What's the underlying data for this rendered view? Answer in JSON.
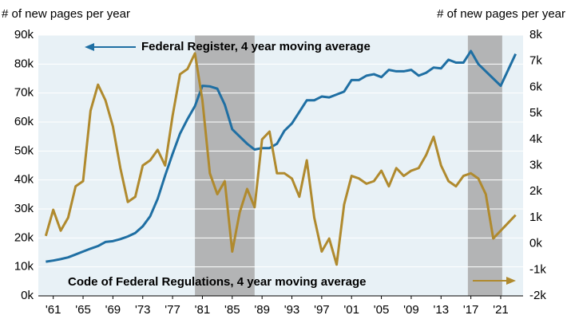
{
  "chart_data": {
    "type": "line",
    "y_label": "# of new pages per year",
    "y2_label": "# of new pages per year",
    "x": [
      1960,
      1961,
      1962,
      1963,
      1964,
      1965,
      1966,
      1967,
      1968,
      1969,
      1970,
      1971,
      1972,
      1973,
      1974,
      1975,
      1976,
      1977,
      1978,
      1979,
      1980,
      1981,
      1982,
      1983,
      1984,
      1985,
      1986,
      1987,
      1988,
      1989,
      1990,
      1991,
      1992,
      1993,
      1994,
      1995,
      1996,
      1997,
      1998,
      1999,
      2000,
      2001,
      2002,
      2003,
      2004,
      2005,
      2006,
      2007,
      2008,
      2009,
      2010,
      2011,
      2012,
      2013,
      2014,
      2015,
      2016,
      2017,
      2018,
      2019,
      2020,
      2021,
      2022,
      2023
    ],
    "xlim": [
      1959,
      2024
    ],
    "xticks": [
      {
        "value": 1961,
        "label": "'61"
      },
      {
        "value": 1965,
        "label": "'65"
      },
      {
        "value": 1969,
        "label": "'69"
      },
      {
        "value": 1973,
        "label": "'73"
      },
      {
        "value": 1977,
        "label": "'77"
      },
      {
        "value": 1981,
        "label": "'81"
      },
      {
        "value": 1985,
        "label": "'85"
      },
      {
        "value": 1989,
        "label": "'89"
      },
      {
        "value": 1993,
        "label": "'93"
      },
      {
        "value": 1997,
        "label": "'97"
      },
      {
        "value": 2001,
        "label": "'01"
      },
      {
        "value": 2005,
        "label": "'05"
      },
      {
        "value": 2009,
        "label": "'09"
      },
      {
        "value": 2013,
        "label": "'13"
      },
      {
        "value": 2017,
        "label": "'17"
      },
      {
        "value": 2021,
        "label": "'21"
      }
    ],
    "ylim": [
      0,
      90000
    ],
    "yticks": [
      {
        "value": 0,
        "label": "0k"
      },
      {
        "value": 10000,
        "label": "10k"
      },
      {
        "value": 20000,
        "label": "20k"
      },
      {
        "value": 30000,
        "label": "30k"
      },
      {
        "value": 40000,
        "label": "40k"
      },
      {
        "value": 50000,
        "label": "50k"
      },
      {
        "value": 60000,
        "label": "60k"
      },
      {
        "value": 70000,
        "label": "70k"
      },
      {
        "value": 80000,
        "label": "80k"
      },
      {
        "value": 90000,
        "label": "90k"
      }
    ],
    "y2lim": [
      -2000,
      8000
    ],
    "y2ticks": [
      {
        "value": -2000,
        "label": "-2k"
      },
      {
        "value": -1000,
        "label": "-1k"
      },
      {
        "value": 0,
        "label": "0k"
      },
      {
        "value": 1000,
        "label": "1k"
      },
      {
        "value": 2000,
        "label": "2k"
      },
      {
        "value": 3000,
        "label": "3k"
      },
      {
        "value": 4000,
        "label": "4k"
      },
      {
        "value": 5000,
        "label": "5k"
      },
      {
        "value": 6000,
        "label": "6k"
      },
      {
        "value": 7000,
        "label": "7k"
      },
      {
        "value": 8000,
        "label": "8k"
      }
    ],
    "shaded_ranges": [
      [
        1980,
        1988
      ],
      [
        2016.6,
        2021.2
      ]
    ],
    "series": [
      {
        "name": "Federal Register, 4 year moving average",
        "color": "#1f6fa3",
        "axis": "y",
        "values": [
          11800,
          12200,
          12700,
          13300,
          14300,
          15300,
          16300,
          17200,
          18600,
          18900,
          19600,
          20500,
          21700,
          24000,
          27500,
          33500,
          41500,
          49000,
          56000,
          61000,
          65500,
          72500,
          72300,
          71500,
          66000,
          57500,
          55000,
          52500,
          50500,
          51000,
          51000,
          52500,
          57000,
          59500,
          63500,
          67500,
          67500,
          68800,
          68500,
          69500,
          70500,
          74500,
          74500,
          76000,
          76500,
          75500,
          78000,
          77500,
          77500,
          78000,
          76000,
          77000,
          78800,
          78500,
          81500,
          80500,
          80500,
          84500,
          80000,
          77500,
          75000,
          72500,
          78000,
          83500
        ]
      },
      {
        "name": "Code of Federal Regulations, 4 year moving average",
        "color": "#b08a2e",
        "axis": "y2",
        "values": [
          300,
          1300,
          500,
          1000,
          2200,
          2400,
          5100,
          6100,
          5500,
          4500,
          2900,
          1600,
          1800,
          3000,
          3200,
          3600,
          3000,
          4900,
          6500,
          6700,
          7300,
          5500,
          2700,
          1900,
          2400,
          -300,
          1200,
          2100,
          1400,
          4000,
          4300,
          2700,
          2700,
          2500,
          1800,
          3200,
          1000,
          -300,
          200,
          -800,
          1500,
          2600,
          2500,
          2300,
          2400,
          2800,
          2200,
          2900,
          2600,
          2800,
          2900,
          3400,
          4100,
          3000,
          2400,
          2200,
          2600,
          2700,
          2500,
          1900,
          200,
          500,
          800,
          1100
        ]
      }
    ]
  }
}
